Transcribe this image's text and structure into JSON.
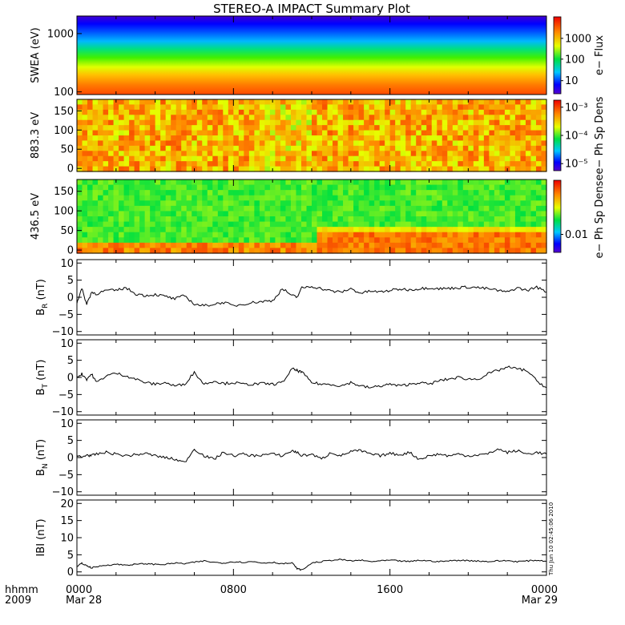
{
  "title": "STEREO-A IMPACT Summary Plot",
  "timestamp": "Thu Jun 10 02:45:06 2010",
  "xaxis": {
    "row1_label": "hhmm",
    "row2_label": "2009",
    "ticks": [
      {
        "hour": 0,
        "label": "0000",
        "date": "Mar 28"
      },
      {
        "hour": 8,
        "label": "0800",
        "date": ""
      },
      {
        "hour": 16,
        "label": "1600",
        "date": ""
      },
      {
        "hour": 24,
        "label": "0000",
        "date": "Mar 29"
      }
    ],
    "range_hours": [
      0,
      24
    ]
  },
  "spectrograms": [
    {
      "id": "swea",
      "ylabel": "SWEA (eV)",
      "yscale": "log",
      "yrange": [
        90,
        2000
      ],
      "yticks": [
        "1000",
        "100"
      ],
      "ytick_values": [
        1000,
        100
      ],
      "colorbar_label": "e− Flux",
      "colorbar_ticks": [
        "1000",
        "100",
        "10"
      ],
      "colorbar_tick_fracs": [
        0.72,
        0.45,
        0.17
      ]
    },
    {
      "id": "pad883",
      "ylabel": "883.3 eV",
      "yscale": "linear",
      "yrange": [
        -8,
        180
      ],
      "yticks": [
        "150",
        "100",
        "50",
        "0"
      ],
      "ytick_values": [
        150,
        100,
        50,
        0
      ],
      "colorbar_label": "e− Ph Sp Dens",
      "colorbar_ticks": [
        "10⁻³",
        "10⁻⁴",
        "10⁻⁵"
      ],
      "colorbar_tick_fracs": [
        0.9,
        0.5,
        0.1
      ]
    },
    {
      "id": "pad436",
      "ylabel": "436.5 eV",
      "yscale": "linear",
      "yrange": [
        -8,
        180
      ],
      "yticks": [
        "150",
        "100",
        "50",
        "0"
      ],
      "ytick_values": [
        150,
        100,
        50,
        0
      ],
      "colorbar_label": "e− Ph Sp Dense",
      "colorbar_ticks": [
        "0.01"
      ],
      "colorbar_tick_fracs": [
        0.25
      ]
    }
  ],
  "chart_data": [
    {
      "type": "heatmap",
      "title": "SWEA (eV)",
      "ylabel": "SWEA (eV)",
      "colorbar": "e− Flux",
      "description_values": {
        "energy_ev_range": [
          90,
          2000
        ],
        "flux_range": [
          5,
          5000
        ]
      }
    },
    {
      "type": "heatmap",
      "ylabel": "883.3 eV",
      "colorbar": "e− Ph Sp Dens",
      "pitch_angle_range": [
        0,
        180
      ]
    },
    {
      "type": "heatmap",
      "ylabel": "436.5 eV",
      "colorbar": "e− Ph Sp Dense",
      "pitch_angle_range": [
        0,
        180
      ]
    },
    {
      "type": "line",
      "ylabel": "B_R (nT)",
      "ylim": [
        -11,
        11
      ],
      "yticks": [
        "10",
        "5",
        "0",
        "−5",
        "−10"
      ],
      "x_hours": [
        0,
        0.25,
        0.5,
        0.75,
        1,
        1.5,
        2,
        2.5,
        3,
        3.5,
        4,
        4.5,
        5,
        5.5,
        6,
        6.5,
        7,
        7.5,
        8,
        8.5,
        9,
        9.5,
        10,
        10.5,
        11,
        11.25,
        11.5,
        12,
        12.5,
        13,
        13.5,
        14,
        14.5,
        15,
        15.5,
        16,
        16.5,
        17,
        17.5,
        18,
        18.5,
        19,
        19.5,
        20,
        20.5,
        21,
        21.5,
        22,
        22.5,
        23,
        23.5,
        24
      ],
      "values": [
        -1.5,
        2.5,
        -2,
        1.5,
        1.0,
        2.0,
        2.0,
        2.8,
        1.0,
        0.5,
        0.8,
        0.3,
        -0.5,
        0.5,
        -2.0,
        -2.5,
        -2.0,
        -1.5,
        -2.5,
        -2.0,
        -1.5,
        -1.2,
        -1.0,
        2.5,
        0.5,
        0.0,
        2.8,
        3.2,
        2.5,
        1.8,
        1.5,
        2.5,
        1.2,
        1.8,
        1.5,
        2.0,
        2.4,
        2.2,
        2.5,
        2.8,
        2.5,
        2.6,
        2.8,
        3.0,
        2.8,
        2.5,
        2.0,
        1.5,
        2.8,
        2.0,
        3.0,
        1.5
      ]
    },
    {
      "type": "line",
      "ylabel": "B_T (nT)",
      "ylim": [
        -11,
        11
      ],
      "yticks": [
        "10",
        "5",
        "0",
        "−5",
        "−10"
      ],
      "x_hours": [
        0,
        0.25,
        0.5,
        0.75,
        1,
        1.5,
        2,
        2.5,
        3,
        3.5,
        4,
        4.5,
        5,
        5.5,
        6,
        6.5,
        7,
        7.5,
        8,
        8.5,
        9,
        9.5,
        10,
        10.5,
        11,
        11.25,
        11.5,
        12,
        12.5,
        13,
        13.5,
        14,
        14.5,
        15,
        15.5,
        16,
        16.5,
        17,
        17.5,
        18,
        18.5,
        19,
        19.5,
        20,
        20.5,
        21,
        21.5,
        22,
        22.5,
        23,
        23.5,
        24
      ],
      "values": [
        0.0,
        1.0,
        -0.5,
        1.0,
        -1.5,
        0.5,
        1.2,
        0.5,
        -0.5,
        -1.5,
        -2.0,
        -1.5,
        -2.5,
        -2.0,
        1.5,
        -2.0,
        -1.0,
        -1.8,
        -1.5,
        -2.0,
        -2.0,
        -1.8,
        -2.0,
        -1.5,
        2.5,
        2.0,
        1.5,
        -1.5,
        -2.0,
        -2.0,
        -2.5,
        -1.5,
        -2.5,
        -3.0,
        -2.5,
        -2.0,
        -2.5,
        -2.0,
        -1.5,
        -2.0,
        -1.0,
        -0.5,
        0.0,
        -0.5,
        -0.5,
        1.0,
        2.0,
        3.0,
        2.5,
        2.0,
        -1.0,
        -3.0
      ]
    },
    {
      "type": "line",
      "ylabel": "B_N (nT)",
      "ylim": [
        -11,
        11
      ],
      "yticks": [
        "10",
        "5",
        "0",
        "−5",
        "−10"
      ],
      "x_hours": [
        0,
        0.25,
        0.5,
        0.75,
        1,
        1.5,
        2,
        2.5,
        3,
        3.5,
        4,
        4.5,
        5,
        5.5,
        6,
        6.5,
        7,
        7.5,
        8,
        8.5,
        9,
        9.5,
        10,
        10.5,
        11,
        11.25,
        11.5,
        12,
        12.5,
        13,
        13.5,
        14,
        14.5,
        15,
        15.5,
        16,
        16.5,
        17,
        17.5,
        18,
        18.5,
        19,
        19.5,
        20,
        20.5,
        21,
        21.5,
        22,
        22.5,
        23,
        23.5,
        24
      ],
      "values": [
        0.5,
        0.0,
        0.8,
        0.5,
        1.0,
        1.5,
        1.0,
        0.5,
        0.8,
        1.2,
        0.5,
        0.0,
        -0.5,
        -1.5,
        2.5,
        0.5,
        -0.5,
        1.5,
        0.5,
        1.0,
        0.5,
        0.8,
        1.0,
        0.5,
        2.0,
        1.5,
        0.5,
        1.0,
        -0.5,
        1.5,
        0.5,
        1.8,
        2.0,
        1.0,
        0.5,
        1.2,
        0.8,
        1.5,
        -0.5,
        0.5,
        1.0,
        0.5,
        1.0,
        0.5,
        0.8,
        1.0,
        2.5,
        1.5,
        2.0,
        1.0,
        1.5,
        1.0
      ]
    },
    {
      "type": "line",
      "ylabel": "|B| (nT)",
      "ylim": [
        -1,
        21
      ],
      "yticks": [
        "20",
        "15",
        "10",
        "5",
        "0"
      ],
      "x_hours": [
        0,
        0.25,
        0.5,
        0.75,
        1,
        1.5,
        2,
        2.5,
        3,
        3.5,
        4,
        4.5,
        5,
        5.5,
        6,
        6.5,
        7,
        7.5,
        8,
        8.5,
        9,
        9.5,
        10,
        10.5,
        11,
        11.25,
        11.5,
        12,
        12.5,
        13,
        13.5,
        14,
        14.5,
        15,
        15.5,
        16,
        16.5,
        17,
        17.5,
        18,
        18.5,
        19,
        19.5,
        20,
        20.5,
        21,
        21.5,
        22,
        22.5,
        23,
        23.5,
        24
      ],
      "values": [
        1.5,
        2.5,
        1.8,
        1.2,
        1.5,
        2.0,
        2.2,
        2.0,
        2.2,
        2.4,
        2.2,
        2.2,
        2.6,
        2.4,
        2.8,
        3.2,
        2.8,
        2.6,
        3.0,
        2.8,
        3.0,
        2.6,
        2.8,
        2.4,
        2.6,
        1.0,
        0.5,
        2.6,
        3.0,
        3.4,
        3.6,
        3.2,
        3.4,
        3.0,
        3.2,
        3.4,
        3.2,
        3.0,
        3.4,
        3.2,
        3.0,
        3.2,
        3.4,
        3.3,
        3.2,
        3.0,
        3.2,
        3.3,
        3.0,
        3.2,
        3.4,
        3.1
      ]
    }
  ],
  "line_panels": [
    {
      "ylabel_main": "B",
      "ylabel_sub": "R",
      "ylabel_unit": " (nT)"
    },
    {
      "ylabel_main": "B",
      "ylabel_sub": "T",
      "ylabel_unit": " (nT)"
    },
    {
      "ylabel_main": "B",
      "ylabel_sub": "N",
      "ylabel_unit": " (nT)"
    },
    {
      "ylabel_main": "IBI",
      "ylabel_sub": "",
      "ylabel_unit": " (nT)"
    }
  ]
}
